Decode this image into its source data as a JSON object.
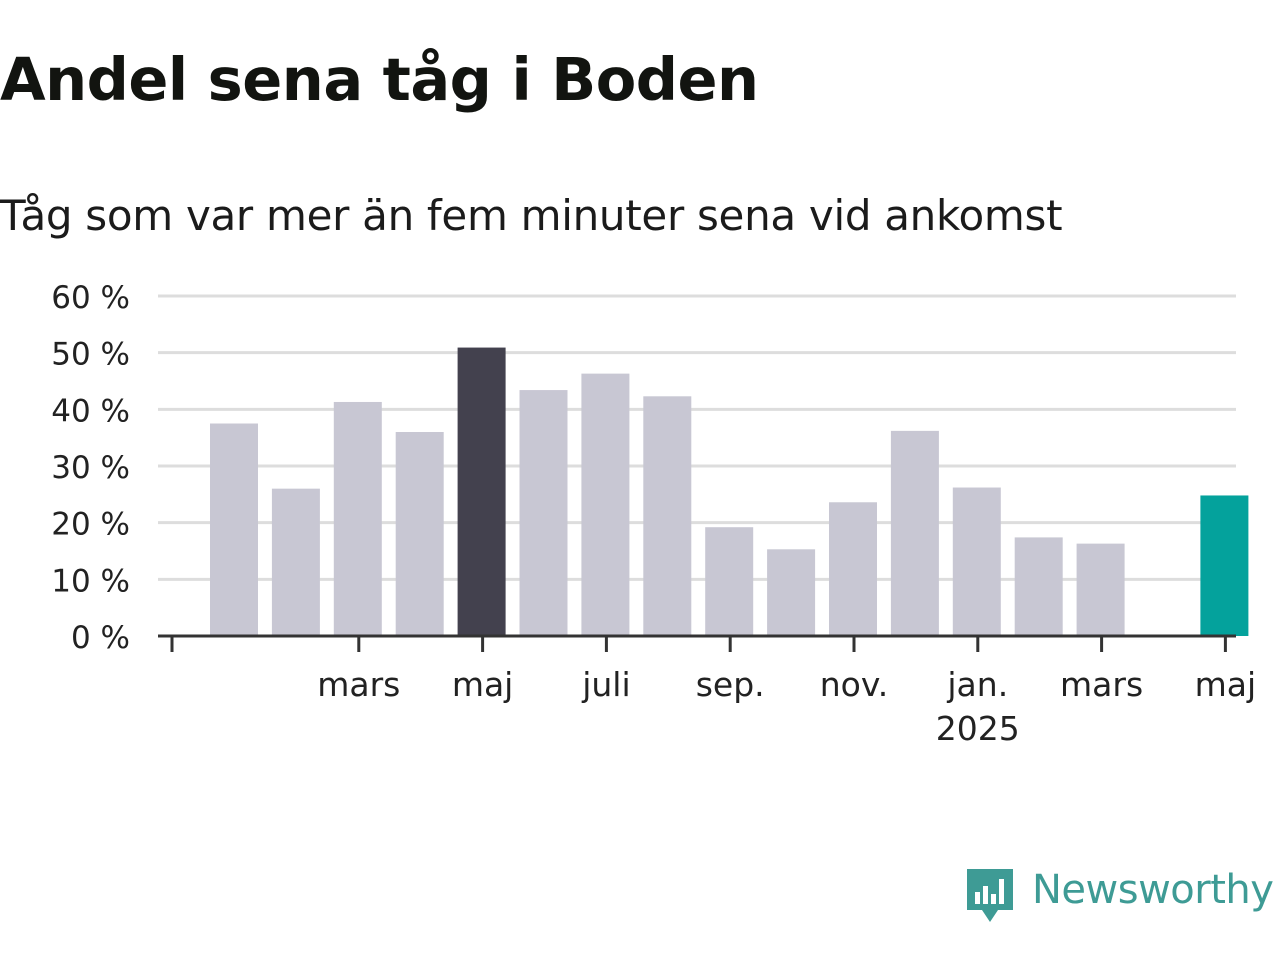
{
  "title": "Andel sena tåg i Boden",
  "subtitle": "Tåg som var mer än fem minuter sena vid ankomst",
  "brand": {
    "name": "Newsworthy",
    "color": "#3e9b95",
    "icon": "newsworthy-chart-bubble-icon"
  },
  "colors": {
    "bar_default": "#c8c7d3",
    "bar_same_month_last_year": "#43414e",
    "bar_latest": "#04a29c",
    "gridline": "#dddddd",
    "axis": "#333333",
    "text": "#222222"
  },
  "chart_data": {
    "type": "bar",
    "title": "Andel sena tåg i Boden",
    "subtitle": "Tåg som var mer än fem minuter sena vid ankomst",
    "xlabel": "",
    "ylabel": "",
    "categories": [
      "2024-01",
      "2024-02",
      "2024-03",
      "2024-04",
      "2024-05",
      "2024-06",
      "2024-07",
      "2024-08",
      "2024-09",
      "2024-10",
      "2024-11",
      "2024-12",
      "2025-01",
      "2025-02",
      "2025-03",
      "2025-04",
      "2025-05"
    ],
    "values": [
      37.5,
      26,
      41.3,
      36,
      50.9,
      43.4,
      46.3,
      42.3,
      19.2,
      15.3,
      23.6,
      36.2,
      26.2,
      17.4,
      16.3,
      null,
      24.8
    ],
    "highlights": {
      "2024-05": "bar_same_month_last_year",
      "2025-05": "bar_latest"
    },
    "ylim": [
      0,
      60
    ],
    "yticks": [
      0,
      10,
      20,
      30,
      40,
      50,
      60
    ],
    "ytick_labels": [
      "0 %",
      "10 %",
      "20 %",
      "30 %",
      "40 %",
      "50 %",
      "60 %"
    ],
    "xticks": [
      {
        "category": "2024-03",
        "label": "mars"
      },
      {
        "category": "2024-05",
        "label": "maj"
      },
      {
        "category": "2024-07",
        "label": "juli"
      },
      {
        "category": "2024-09",
        "label": "sep."
      },
      {
        "category": "2024-11",
        "label": "nov."
      },
      {
        "category": "2025-01",
        "label": "jan.",
        "sublabel": "2025"
      },
      {
        "category": "2025-03",
        "label": "mars"
      },
      {
        "category": "2025-05",
        "label": "maj"
      }
    ],
    "grid": true,
    "legend": "none"
  }
}
